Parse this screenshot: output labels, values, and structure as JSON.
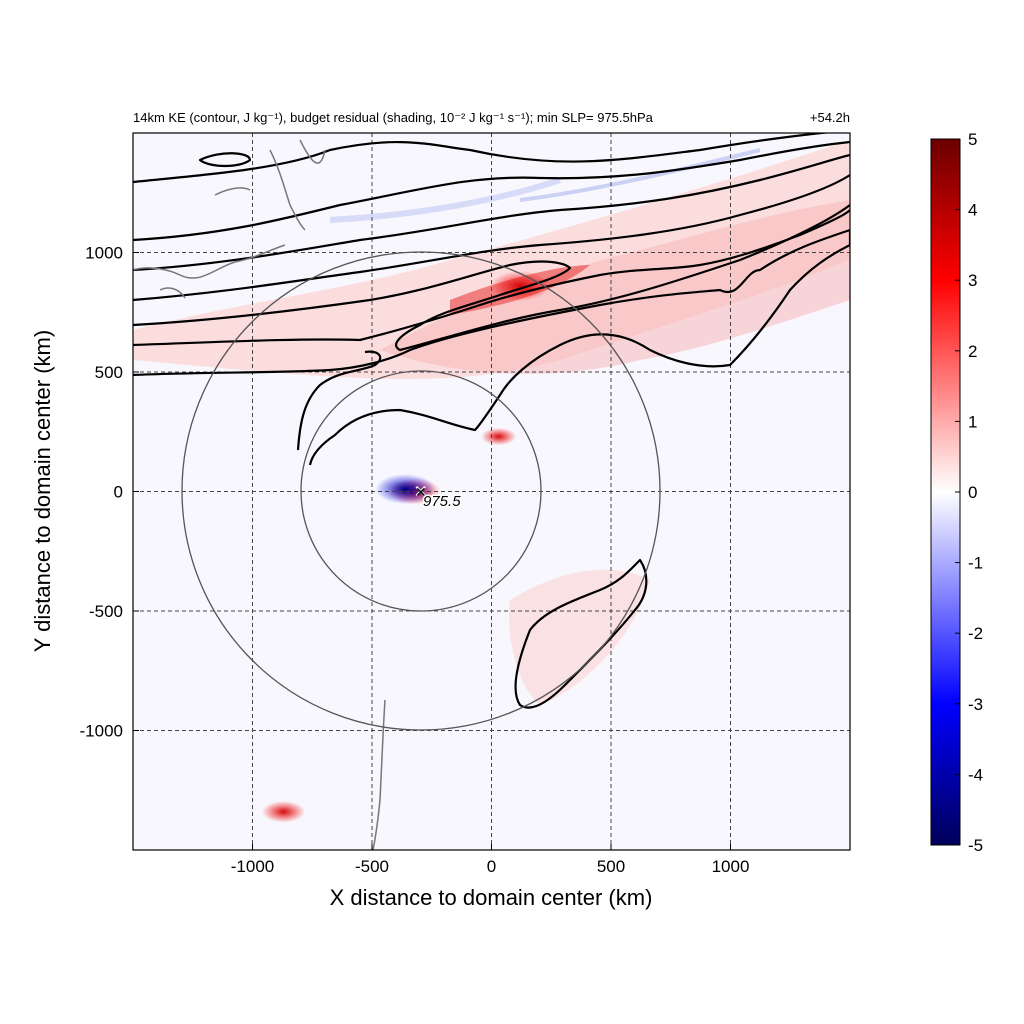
{
  "chart_data": {
    "type": "heatmap",
    "title_left": "14km KE (contour, J kg⁻¹), budget residual (shading, 10⁻² J kg⁻¹ s⁻¹); min SLP= 975.5hPa",
    "title_right": "+54.2h",
    "xlabel": "X distance to domain center (km)",
    "ylabel": "Y distance to domain center (km)",
    "xlim": [
      -1500,
      1500
    ],
    "ylim": [
      -1500,
      1500
    ],
    "xticks": [
      -1000,
      -500,
      0,
      500,
      1000
    ],
    "yticks": [
      -1000,
      -500,
      0,
      500,
      1000
    ],
    "grid": true,
    "center_marker": {
      "x": -300,
      "y": 0,
      "label": "975.5"
    },
    "rings_km": [
      500,
      1000
    ],
    "colorbar": {
      "min": -5,
      "max": 5,
      "ticks": [
        5,
        4,
        3,
        2,
        1,
        0,
        -1,
        -2,
        -3,
        -4,
        -5
      ],
      "colors": {
        "neg": "#00008b",
        "mid": "#ffffff",
        "pos": "#8b0000"
      }
    },
    "highlights": [
      {
        "x": 120,
        "y": 860,
        "value": 4.5
      },
      {
        "x": -320,
        "y": 0,
        "value": 3.5
      },
      {
        "x": -360,
        "y": 10,
        "value": -4.5
      },
      {
        "x": -870,
        "y": -1340,
        "value": 2.5
      },
      {
        "x": 30,
        "y": 230,
        "value": 1.5
      }
    ]
  }
}
